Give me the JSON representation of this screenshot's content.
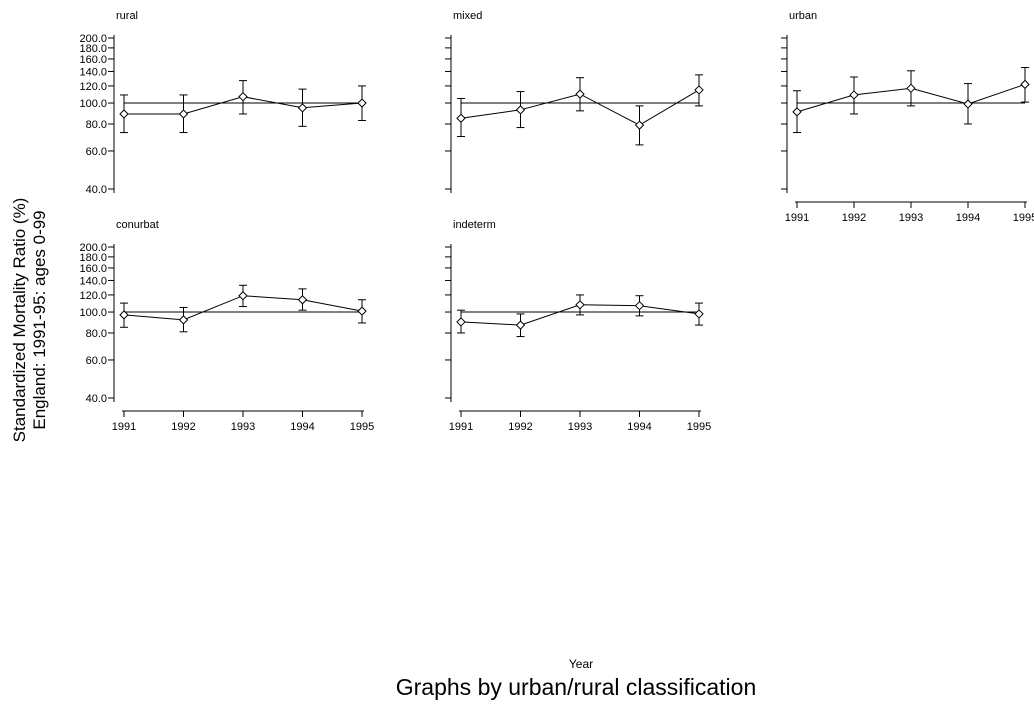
{
  "figure": {
    "ylabel_line1": "Standardized Mortality Ratio (%)",
    "ylabel_line2": "England: 1991-95: ages 0-99",
    "xlabel": "Year",
    "caption": "Graphs by urban/rural classification"
  },
  "chart_data": {
    "type": "line",
    "scale": "log",
    "reference_line": 100,
    "ylim": [
      38,
      205
    ],
    "y_ticks": [
      40,
      60,
      80,
      100,
      120,
      140,
      160,
      180,
      200
    ],
    "y_tick_labels": [
      "40.0",
      "60.0",
      "80.0",
      "100.0",
      "120.0",
      "140.0",
      "160.0",
      "180.0",
      "200.0"
    ],
    "x": [
      1991,
      1992,
      1993,
      1994,
      1995
    ],
    "x_tick_labels": [
      "1991",
      "1992",
      "1993",
      "1994",
      "1995"
    ],
    "panels": [
      {
        "title": "rural",
        "values": [
          89,
          89,
          107,
          95,
          100
        ],
        "lower": [
          73,
          73,
          89,
          78,
          83
        ],
        "upper": [
          109,
          109,
          127,
          116,
          120
        ]
      },
      {
        "title": "mixed",
        "values": [
          85,
          93,
          110,
          79,
          115
        ],
        "lower": [
          70,
          77,
          92,
          64,
          97
        ],
        "upper": [
          105,
          113,
          131,
          97,
          135
        ]
      },
      {
        "title": "urban",
        "values": [
          91,
          109,
          117,
          99,
          122
        ],
        "lower": [
          73,
          89,
          97,
          80,
          101
        ],
        "upper": [
          114,
          132,
          141,
          123,
          146
        ]
      },
      {
        "title": "conurbat",
        "values": [
          97,
          92,
          119,
          114,
          101
        ],
        "lower": [
          85,
          81,
          106,
          102,
          89
        ],
        "upper": [
          110,
          105,
          133,
          128,
          114
        ]
      },
      {
        "title": "indeterm",
        "values": [
          90,
          87,
          108,
          107,
          98
        ],
        "lower": [
          80,
          77,
          97,
          96,
          87
        ],
        "upper": [
          102,
          98,
          120,
          119,
          110
        ]
      }
    ]
  }
}
